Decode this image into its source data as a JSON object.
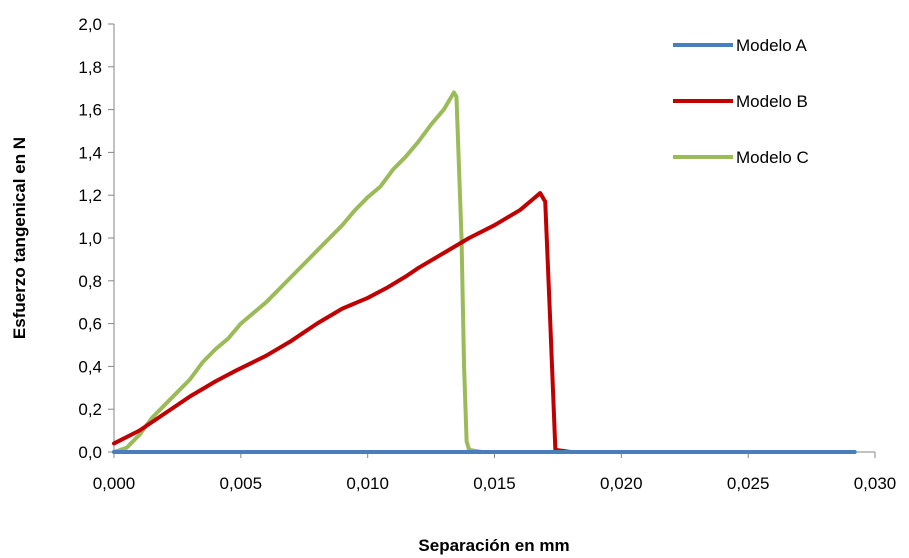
{
  "chart_data": {
    "type": "line",
    "title": "",
    "xlabel": "Separación en mm",
    "ylabel": "Esfuerzo tangenical  en N",
    "xlim": [
      0,
      0.03
    ],
    "ylim": [
      0,
      2.0
    ],
    "x_ticks": [
      "0,000",
      "0,005",
      "0,010",
      "0,015",
      "0,020",
      "0,025",
      "0,030"
    ],
    "y_ticks": [
      "0,0",
      "0,2",
      "0,4",
      "0,6",
      "0,8",
      "1,0",
      "1,2",
      "1,4",
      "1,6",
      "1,8",
      "2,0"
    ],
    "grid": false,
    "legend_position": "top-right",
    "series": [
      {
        "name": "Modelo A",
        "color": "#4a7ebb",
        "points": [
          [
            0.0,
            0.0
          ],
          [
            0.005,
            0.0
          ],
          [
            0.01,
            0.0
          ],
          [
            0.015,
            0.0
          ],
          [
            0.02,
            0.0
          ],
          [
            0.025,
            0.0
          ],
          [
            0.0292,
            0.0
          ]
        ]
      },
      {
        "name": "Modelo B",
        "color": "#c00000",
        "points": [
          [
            0.0,
            0.04
          ],
          [
            0.001,
            0.1
          ],
          [
            0.002,
            0.18
          ],
          [
            0.003,
            0.26
          ],
          [
            0.004,
            0.33
          ],
          [
            0.0048,
            0.38
          ],
          [
            0.006,
            0.45
          ],
          [
            0.007,
            0.52
          ],
          [
            0.008,
            0.6
          ],
          [
            0.009,
            0.67
          ],
          [
            0.01,
            0.72
          ],
          [
            0.0108,
            0.77
          ],
          [
            0.0115,
            0.82
          ],
          [
            0.012,
            0.86
          ],
          [
            0.013,
            0.93
          ],
          [
            0.014,
            1.0
          ],
          [
            0.015,
            1.06
          ],
          [
            0.016,
            1.13
          ],
          [
            0.0165,
            1.18
          ],
          [
            0.0168,
            1.21
          ],
          [
            0.017,
            1.17
          ],
          [
            0.0172,
            0.6
          ],
          [
            0.0174,
            0.01
          ],
          [
            0.018,
            0.0
          ],
          [
            0.019,
            0.0
          ],
          [
            0.0204,
            0.0
          ]
        ]
      },
      {
        "name": "Modelo C",
        "color": "#9bbb59",
        "points": [
          [
            0.0,
            0.0
          ],
          [
            0.0005,
            0.02
          ],
          [
            0.001,
            0.08
          ],
          [
            0.0015,
            0.16
          ],
          [
            0.002,
            0.22
          ],
          [
            0.003,
            0.34
          ],
          [
            0.0035,
            0.42
          ],
          [
            0.004,
            0.48
          ],
          [
            0.0045,
            0.53
          ],
          [
            0.005,
            0.6
          ],
          [
            0.006,
            0.7
          ],
          [
            0.007,
            0.82
          ],
          [
            0.008,
            0.94
          ],
          [
            0.009,
            1.06
          ],
          [
            0.0095,
            1.13
          ],
          [
            0.01,
            1.19
          ],
          [
            0.0105,
            1.24
          ],
          [
            0.011,
            1.32
          ],
          [
            0.0115,
            1.38
          ],
          [
            0.012,
            1.45
          ],
          [
            0.0125,
            1.53
          ],
          [
            0.013,
            1.6
          ],
          [
            0.0134,
            1.68
          ],
          [
            0.0135,
            1.66
          ],
          [
            0.0137,
            1.0
          ],
          [
            0.0138,
            0.4
          ],
          [
            0.0139,
            0.05
          ],
          [
            0.014,
            0.01
          ],
          [
            0.0145,
            0.0
          ]
        ]
      }
    ]
  }
}
